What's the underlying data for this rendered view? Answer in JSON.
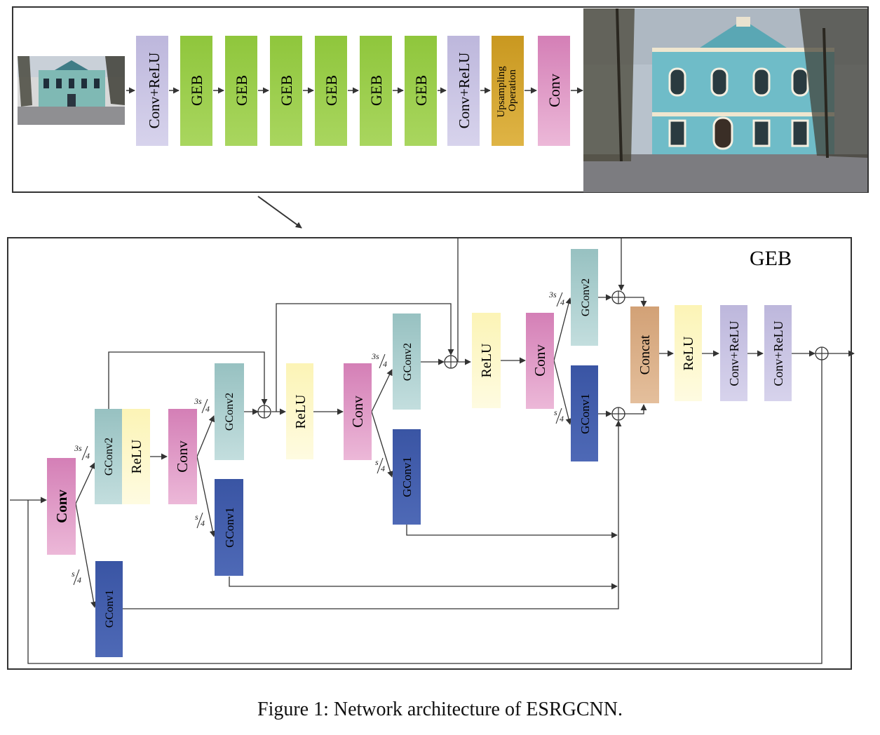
{
  "caption": "Figure 1: Network architecture of ESRGCNN.",
  "colors": {
    "conv_relu": "#c4bfe0",
    "geb": "#9ccf4c",
    "upsampling": "#d4a62e",
    "conv": "#d98dbc",
    "gconv2": "#a3c9c9",
    "gconv1": "#3b56a6",
    "relu": "#fcf6c2",
    "concat": "#d9aa83",
    "line": "#333333"
  },
  "icons": {
    "input_image": "low-resolution-building-photo",
    "output_image": "high-resolution-building-photo"
  },
  "top": {
    "blocks": [
      "Conv+ReLU",
      "GEB",
      "GEB",
      "GEB",
      "GEB",
      "GEB",
      "GEB",
      "Conv+ReLU",
      "Upsampling Operation",
      "Conv"
    ]
  },
  "geb": {
    "title": "GEB",
    "conv": "Conv",
    "gconv1": "GConv1",
    "gconv2": "GConv2",
    "relu": "ReLU",
    "concat": "Concat",
    "conv_relu": "Conv+ReLU",
    "split_3s": "3s",
    "split_s": "s",
    "split_4": "4"
  }
}
